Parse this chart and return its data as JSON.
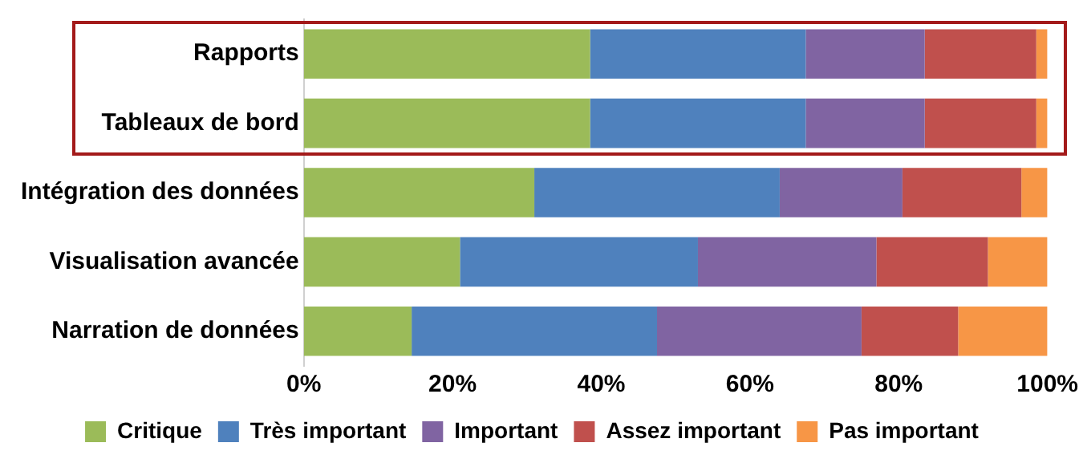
{
  "chart_data": {
    "type": "bar",
    "orientation": "horizontal",
    "stacked": true,
    "categories": [
      "Rapports",
      "Tableaux de bord",
      "Intégration des données",
      "Visualisation avancée",
      "Narration de données"
    ],
    "series": [
      {
        "name": "Critique",
        "color": "#9bbb59",
        "values": [
          38.5,
          38.5,
          31,
          21,
          14.5
        ]
      },
      {
        "name": "Très important",
        "color": "#4f81bd",
        "values": [
          29,
          29,
          33,
          32,
          33
        ]
      },
      {
        "name": "Important",
        "color": "#8064a2",
        "values": [
          16,
          16,
          16.5,
          24,
          27.5
        ]
      },
      {
        "name": "Assez important",
        "color": "#c0504d",
        "values": [
          15,
          15,
          16,
          15,
          13
        ]
      },
      {
        "name": "Pas important",
        "color": "#f79646",
        "values": [
          1.5,
          1.5,
          3.5,
          8,
          12
        ]
      }
    ],
    "xlim": [
      0,
      100
    ],
    "xticks": [
      {
        "value": 0,
        "label": "0%"
      },
      {
        "value": 20,
        "label": "20%"
      },
      {
        "value": 40,
        "label": "40%"
      },
      {
        "value": 60,
        "label": "60%"
      },
      {
        "value": 80,
        "label": "80%"
      },
      {
        "value": 100,
        "label": "100%"
      }
    ],
    "grid": false,
    "legend": "bottom"
  }
}
